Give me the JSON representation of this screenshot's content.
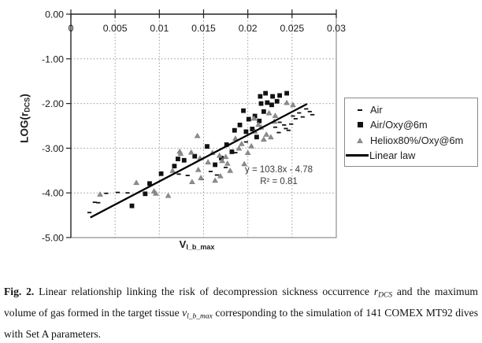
{
  "chart_data": {
    "type": "scatter",
    "title": "",
    "xlim": [
      0,
      0.03
    ],
    "ylim": [
      -5,
      0
    ],
    "grid": "dotted",
    "x_axis": {
      "label_main": "V",
      "label_sub": "l_b_max",
      "position": "top",
      "ticks": [
        0,
        0.005,
        0.01,
        0.015,
        0.02,
        0.025,
        0.03
      ],
      "tick_labels": [
        "0",
        "0.005",
        "0.01",
        "0.015",
        "0.02",
        "0.025",
        "0.03"
      ]
    },
    "y_axis": {
      "label_prefix": "LOG(r",
      "label_sub": "DCS",
      "label_suffix": ")",
      "ticks": [
        0,
        -1,
        -2,
        -3,
        -4,
        -5
      ],
      "tick_labels": [
        "0.00",
        "-1.00",
        "-2.00",
        "-3.00",
        "-4.00",
        "-5.00"
      ]
    },
    "annotation": {
      "equation": "y = 103.8x - 4.78",
      "r_squared": "R² = 0.81"
    },
    "legend_position": "right-outside",
    "series": [
      {
        "name": "Air",
        "marker": "dash",
        "color": "#111111",
        "points": [
          [
            0.0021,
            -4.44
          ],
          [
            0.0027,
            -4.21
          ],
          [
            0.0031,
            -4.22
          ],
          [
            0.004,
            -4.01
          ],
          [
            0.0053,
            -3.99
          ],
          [
            0.0064,
            -4.0
          ],
          [
            0.0122,
            -3.58
          ],
          [
            0.0132,
            -3.61
          ],
          [
            0.0148,
            -3.7
          ],
          [
            0.0158,
            -3.52
          ],
          [
            0.0165,
            -3.6
          ],
          [
            0.0175,
            -3.43
          ],
          [
            0.0186,
            -3.1
          ],
          [
            0.0198,
            -2.86
          ],
          [
            0.0231,
            -2.53
          ],
          [
            0.0235,
            -2.65
          ],
          [
            0.0236,
            -2.42
          ],
          [
            0.0241,
            -2.48
          ],
          [
            0.0243,
            -2.56
          ],
          [
            0.0246,
            -2.6
          ],
          [
            0.0249,
            -2.46
          ],
          [
            0.0251,
            -2.28
          ],
          [
            0.0254,
            -2.34
          ],
          [
            0.0258,
            -2.21
          ],
          [
            0.0262,
            -2.3
          ],
          [
            0.0266,
            -2.12
          ],
          [
            0.027,
            -2.18
          ],
          [
            0.0273,
            -2.25
          ]
        ]
      },
      {
        "name": "Air/Oxy@6m",
        "marker": "square",
        "color": "#111111",
        "points": [
          [
            0.0069,
            -4.29
          ],
          [
            0.0084,
            -4.02
          ],
          [
            0.0089,
            -3.79
          ],
          [
            0.0102,
            -3.57
          ],
          [
            0.0117,
            -3.4
          ],
          [
            0.0121,
            -3.24
          ],
          [
            0.0128,
            -3.27
          ],
          [
            0.014,
            -3.18
          ],
          [
            0.0154,
            -2.96
          ],
          [
            0.0163,
            -3.37
          ],
          [
            0.017,
            -3.22
          ],
          [
            0.0176,
            -2.92
          ],
          [
            0.0182,
            -3.08
          ],
          [
            0.0185,
            -2.6
          ],
          [
            0.0191,
            -2.48
          ],
          [
            0.0195,
            -2.16
          ],
          [
            0.0198,
            -2.63
          ],
          [
            0.0201,
            -2.35
          ],
          [
            0.0205,
            -2.57
          ],
          [
            0.0208,
            -2.28
          ],
          [
            0.021,
            -2.75
          ],
          [
            0.0213,
            -2.39
          ],
          [
            0.0214,
            -1.84
          ],
          [
            0.0215,
            -2.0
          ],
          [
            0.0218,
            -2.18
          ],
          [
            0.022,
            -1.77
          ],
          [
            0.0222,
            -1.98
          ],
          [
            0.0227,
            -2.03
          ],
          [
            0.0228,
            -1.84
          ],
          [
            0.0233,
            -1.95
          ],
          [
            0.0236,
            -1.82
          ],
          [
            0.0244,
            -1.77
          ]
        ]
      },
      {
        "name": "Heliox80%/Oxy@6m",
        "marker": "triangle",
        "color": "#8c8c8c",
        "points": [
          [
            0.0033,
            -4.03
          ],
          [
            0.0074,
            -3.77
          ],
          [
            0.0094,
            -3.96
          ],
          [
            0.0096,
            -4.01
          ],
          [
            0.011,
            -4.06
          ],
          [
            0.0115,
            -3.5
          ],
          [
            0.0123,
            -3.07
          ],
          [
            0.0124,
            -3.12
          ],
          [
            0.0136,
            -3.09
          ],
          [
            0.0137,
            -3.75
          ],
          [
            0.0143,
            -2.72
          ],
          [
            0.0144,
            -3.48
          ],
          [
            0.0146,
            -3.22
          ],
          [
            0.0147,
            -3.66
          ],
          [
            0.0155,
            -3.31
          ],
          [
            0.016,
            -3.1
          ],
          [
            0.0163,
            -3.72
          ],
          [
            0.0168,
            -3.16
          ],
          [
            0.0169,
            -3.62
          ],
          [
            0.0171,
            -3.28
          ],
          [
            0.0175,
            -3.19
          ],
          [
            0.0177,
            -3.34
          ],
          [
            0.018,
            -3.5
          ],
          [
            0.0186,
            -2.78
          ],
          [
            0.019,
            -3.0
          ],
          [
            0.0193,
            -2.9
          ],
          [
            0.0196,
            -3.35
          ],
          [
            0.02,
            -3.1
          ],
          [
            0.0204,
            -2.95
          ],
          [
            0.0207,
            -2.33
          ],
          [
            0.0208,
            -2.62
          ],
          [
            0.0212,
            -2.47
          ],
          [
            0.0215,
            -2.53
          ],
          [
            0.0218,
            -2.8
          ],
          [
            0.0221,
            -2.69
          ],
          [
            0.0224,
            -2.21
          ],
          [
            0.0226,
            -2.75
          ],
          [
            0.023,
            -2.4
          ],
          [
            0.0231,
            -2.27
          ],
          [
            0.0244,
            -1.98
          ],
          [
            0.0251,
            -2.03
          ]
        ]
      },
      {
        "name": "Linear law",
        "marker": "line",
        "color": "#000000",
        "slope": 103.8,
        "intercept": -4.78,
        "x_range": [
          0.0022,
          0.0267
        ]
      }
    ]
  },
  "caption": {
    "fig_label": "Fig. 2.",
    "part1": " Linear relationship linking the risk of decompression sickness occurrence ",
    "r_symbol": "r",
    "r_sub": "DCS",
    "part2": " and the maximum volume of gas formed in the target tissue ",
    "v_symbol": "v",
    "v_sub": "l_b_max",
    "part3": " corresponding to the simulation of 141 COMEX MT92 dives with Set A parameters."
  }
}
